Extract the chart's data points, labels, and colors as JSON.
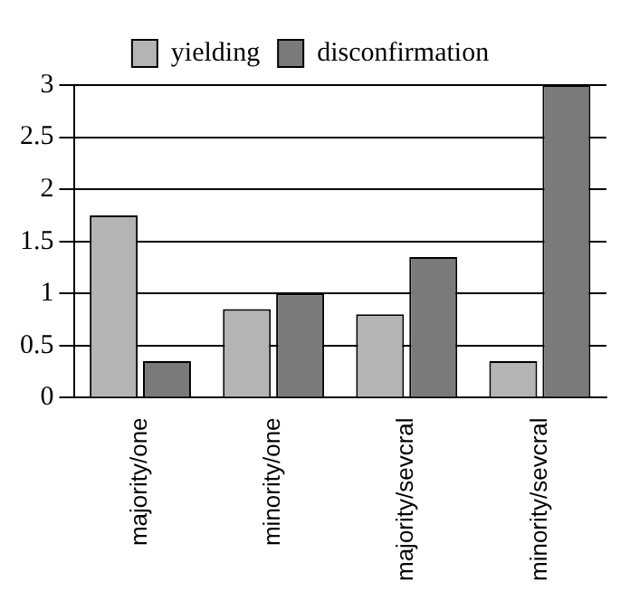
{
  "chart_data": {
    "type": "bar",
    "categories": [
      "majority/one",
      "minority/one",
      "majority/sevcral",
      "minority/sevcral"
    ],
    "series": [
      {
        "name": "yielding",
        "color": "#b4b4b4",
        "values": [
          1.75,
          0.85,
          0.8,
          0.35
        ]
      },
      {
        "name": "disconfirmation",
        "color": "#7a7a7a",
        "values": [
          0.35,
          1.0,
          1.35,
          3.0
        ]
      }
    ],
    "ylim": [
      0,
      3
    ],
    "yticks": [
      0,
      0.5,
      1,
      1.5,
      2,
      2.5,
      3
    ],
    "grid": "y",
    "legend": "top"
  }
}
